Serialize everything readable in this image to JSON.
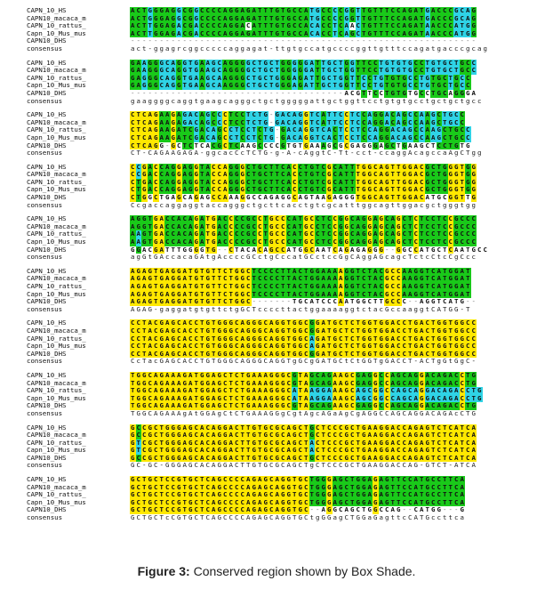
{
  "figure": {
    "caption_label": "Figure 3:",
    "caption_text": " Conserved region shown by Box Shade."
  },
  "legend_colors": {
    "identical": "#ffe800",
    "similar": "#19c919",
    "alternate": "#2fd3e6"
  },
  "blocks": [
    {
      "rows": [
        {
          "name": "CAPN_10_HS",
          "seq": "ACTGGGAGGCGGCCCCAGGAGATTTGTGCCATGCCCCGGTTGTTTCCAGATGACCCGCAG"
        },
        {
          "name": "CAPN10_macaca_m",
          "seq": "ACTGGGAGGCGGCCCCAGGAGATTTGTGCCATGCCCCGGTTGTTTCCAGATGACCCGCAG"
        },
        {
          "name": "CAPN_10_rattus_",
          "seq": "ACTTGGAGACGACCCCAGGACATTTGTGCCACACCTCAACTGTTTCCAGATAACCCATGG"
        },
        {
          "name": "Capn_10_Mus_mus",
          "seq": "ACTTGGAGACGACCCCAGGAGATTTGTGCCACACCTCAGCTGTTTCCAGATAACCCATGG"
        },
        {
          "name": "CAPN10_DHS",
          "seq": "------------------------------------------------------------"
        },
        {
          "name": "consensus",
          "seq": "act-ggagrcggcccccaggagat-ttgtgccatgccccggttgtttccagatgacccgcag"
        }
      ]
    },
    {
      "rows": [
        {
          "name": "CAPN_10_HS",
          "seq": "GAAGGGCAGGTGAAGCAGGGGCTGCTGGGGGATTGCTGGTTCCTGTGTGCCTGTGCTGCC"
        },
        {
          "name": "CAPN10_macaca_m",
          "seq": "GAAGGGCAGGTGAAGCAGGGGCTGCTGGGGGATTGCTGGTTCCTGTGTGCCTGTGCTGCC"
        },
        {
          "name": "CAPN_10_rattus_",
          "seq": "GAGGGCAGGTGAAGCAAGGGCTGCTGGGAGATTGCTGGTTCCTGTGTGCCTGTGCTGCC"
        },
        {
          "name": "Capn_10_Mus_mus",
          "seq": "GAGGGCAGGTGAAGCAAGGGCTGCTGGGAGATTGCTGGTTCCTGTGTGCCTGTGCTGCC"
        },
        {
          "name": "CAPN10_DHS",
          "seq": "-------------------------------------ACGTTCCTGTGTGCCTGCAGGGA"
        },
        {
          "name": "consensus",
          "seq": "gaaggggcaggtgaagcagggctgctgggggattgctggttcctgtgtgcctgctgctgcc"
        }
      ]
    },
    {
      "rows": [
        {
          "name": "CAPN_10_HS",
          "seq": "CTCAGAAGAGACAGCCCTCCTCTG-GACAGGTCATTCCTCCAGGACAGCCAAGCTGCC"
        },
        {
          "name": "CAPN10_macaca_m",
          "seq": "CTCAGAAGAGACAGCCCTCCTCTG-GACAGGTCATTCCTCCAGGACAGCCAAGCTGCC"
        },
        {
          "name": "CAPN_10_rattus_",
          "seq": "CTCAGAAGATCGACAGCCTCCTCTG-GACAGGTCACTCCTCCAGGACAGCCAAGCTGCC"
        },
        {
          "name": "Capn_10_Mus_mus",
          "seq": "CTCAGAAGATCGACAGCCTCCTCTG-GACAGGTCACTCCTCCAGGACAGCCAAGCTGCC"
        },
        {
          "name": "CAPN10_DHS",
          "seq": "CTCAGG-GCTCTCACGCTCAAGCCCCGTGTGAAAGCGCGAGGGAGCTGAAGCTCCTGTG"
        },
        {
          "name": "consensus",
          "seq": "CT-CAGAAGAGA-ggcacCcTCTG-g-A-cAggtC-Tt-cct-ccaggAcagccaAgCTgg"
        }
      ]
    },
    {
      "rows": [
        {
          "name": "CAPN_10_HS",
          "seq": "CCGACCAGGAGGTACCAGGGCTGCTTCACCTGTCGCATTTGGCAGTTGGACGCTGGGTGG"
        },
        {
          "name": "CAPN10_macaca_m",
          "seq": "CCGACCAGGAGGTACCAGGGCTGCTTCACCTGTCGCATTTGGCAGTTGGACGCTGGGTGG"
        },
        {
          "name": "CAPN_10_rattus_",
          "seq": "CTGACCAGGAGGTACCAGGGCTGCTTCACCTGTCGCATTTGGCAGTTGGACGCTGGGTGG"
        },
        {
          "name": "Capn_10_Mus_mus",
          "seq": "CTGACCAGGAGGTACCAGGGCTGCTTCACCTGTCGCATTTGGCAGTTGGACGCTGGGTGG"
        },
        {
          "name": "CAPN10_DHS",
          "seq": "CTGGCTGAGCAGAGCCAAAGGCCAGAGGCAGTAAGAGGGTGGCAGTTGGACATGCGGTTG"
        },
        {
          "name": "consensus",
          "seq": "Ccgaccaggaggtaccagggctgcttcacctgtcgcatttggcagttggacgctgggtgg"
        }
      ]
    },
    {
      "rows": [
        {
          "name": "CAPN_10_HS",
          "seq": "AGGTGACCACAGATGACCCCGCCTGCCCATGCCTCCGGCAGGAGCAGCTCTCCTCCGCCC"
        },
        {
          "name": "CAPN10_macaca_m",
          "seq": "AGGTGACCACAGATGACCCCGCCTGCCCATGCCTCCGGCAGGAGCAGCTCTCCTCCGCCC"
        },
        {
          "name": "CAPN_10_rattus_",
          "seq": "AAGTGACCACAGATGACCCCGCCTGCCCATGCCTCCGGCAGGAGCAGCTCTCCTCCGCCC"
        },
        {
          "name": "Capn_10_Mus_mus",
          "seq": "AAGTGACCACAGATGACCCCGCCTGCCCATGCCTCCGGCAGGAGCAGCTCTCCTCCGCCC"
        },
        {
          "name": "CAPN10_DHS",
          "seq": "GGACGATTTGGGGTG--CTACACAGCCATGGCAATCAGAGAGGG--GGCCATGCTCAATGCC"
        },
        {
          "name": "consensus",
          "seq": "agGtGAccacaGAtgAccccGCctgCccatGCctccGgCAggAGcagcTctcCtcCgCcc"
        }
      ]
    },
    {
      "rows": [
        {
          "name": "CAPN_10_HS",
          "seq": "AGAGTGAGGATGTGTTCTGGCTCCCCTTACTGGAAAAGGTCTACGCCAAGGTCATGGAT"
        },
        {
          "name": "CAPN10_macaca_m",
          "seq": "AGAGTGAGGATGTGTTCTGGCTCCCCTTACTGGAAAAGGTCTACGCCAAGGTCATGGAT"
        },
        {
          "name": "CAPN_10_rattus_",
          "seq": "AGAGTGAGGATGTGTTCTGGCTCCCCTTACTGGAAAAGGTCTACGCCAAGGTCATGGAT"
        },
        {
          "name": "Capn_10_Mus_mus",
          "seq": "AGAGTGAGGATGTGTTCTGGCTCCCCTTACTGGAAAAGGTCTACGCCAAGGTCATGGAT"
        },
        {
          "name": "CAPN10_DHS",
          "seq": "AGAGTGAGGATGTGTTCTGGC-------TGCATCCCAATGGCTTGCCC--AGGTCATG--"
        },
        {
          "name": "consensus",
          "seq": "AGAG-gaggatgtgttctgGCTccccttactggaaaaggtctacGccaaggtCATGG-T"
        }
      ]
    },
    {
      "rows": [
        {
          "name": "CAPN_10_HS",
          "seq": "CCTACGAGCACCTGTGGGCAGGGCAGGTGGCGGATGCTCTGGTGGACCTGACTGGTGGCC"
        },
        {
          "name": "CAPN10_macaca_m",
          "seq": "CCTACGAGCACCTGTGGGCAGGGCAGGTGGCGGATGCTCTGGTGGACCTGACTGGTGGCC"
        },
        {
          "name": "CAPN_10_rattus_",
          "seq": "CCTACGAGCACCTGTGGGCAGGGCAGGTGGCAGATGCTCTGGTGGACCTGACTGGTGGCC"
        },
        {
          "name": "Capn_10_Mus_mus",
          "seq": "CCTACGAGCACCTGTGGGCAGGGCAGGTGGCAGATGCTCTGGTGGACCTGACTGGTGGCC"
        },
        {
          "name": "CAPN10_DHS",
          "seq": "CCTACGAGCACCTGTGGGCAGGGCAGGTGGCGGATGCTCTGGTGGACCTGACTGGTGGCC"
        },
        {
          "name": "consensus",
          "seq": "CcTacGAGCACCTGTGGGCAGGGCAGGTgGCgGATGCtCtGGTgGACCT-ACTgGtGgC-"
        }
      ]
    },
    {
      "rows": [
        {
          "name": "CAPN_10_HS",
          "seq": "TGGCAGAAAGATGGAGCTCTGAAAGGGCGTAGCAGAAGCGAGGCCAGCAGGACAGACCTG"
        },
        {
          "name": "CAPN10_macaca_m",
          "seq": "TGGCAGAAAGATGGAGCTCTGAAAGGGCGTAGCAGAAGCGAGGCCAGCAGGACAGACCTG"
        },
        {
          "name": "CAPN_10_rattus_",
          "seq": "TGGCAGAAAGATGGAGCTCTGAAAGGGCATAAGGAAAGCAGCGGCCAGCAGGACAGACCTG"
        },
        {
          "name": "Capn_10_Mus_mus",
          "seq": "TGGCAGAAAGATGGAGCTCTGAAAGGGCATAAGGAAAGCAGCGGCCAGCAGGACAGACCTG"
        },
        {
          "name": "CAPN10_DHS",
          "seq": "TGGCAGAAAGATGGAGCTCTGAAAGGGCGTAGCAGAAGCGAGGCCAGCAGGACAGACCTG"
        },
        {
          "name": "consensus",
          "seq": "TGGCAGAAAgAtGGAgCtCTGAAAGGgCgtAgcAGaAgCgAGGCCAGCAGGACAGAcCTG"
        }
      ]
    },
    {
      "rows": [
        {
          "name": "CAPN_10_HS",
          "seq": "GCCGCTGGGAGCACAGGACTTGTGCGCAGCTGCTCCCGCTGAAGGACCAGAGTCTCATCA"
        },
        {
          "name": "CAPN10_macaca_m",
          "seq": "GCCGCTGGGAGCACAGGACTTGTGCGCAGCTGCTCCCGCTGAAGGACCAGAGTCTCATCA"
        },
        {
          "name": "CAPN_10_rattus_",
          "seq": "GTCGCTGGGAGCACAGGACTTGTGCGCAGCTACTCCCGCTGAAGGACCAGAGTCTCATCA"
        },
        {
          "name": "Capn_10_Mus_mus",
          "seq": "GTCGCTGGGAGCACAGGACTTGTGCGCAGCTACTCCCGCTGAAGGACCAGAGTCTCATCA"
        },
        {
          "name": "CAPN10_DHS",
          "seq": "GCCGCTGGGAGCACAGGACTTGTGCGCAGCTGCTCCCGCTGAAGGACCAGAGTCTCATCA"
        },
        {
          "name": "consensus",
          "seq": "GC-GC-GGGAGCACAGGACTTGTGCGCAGCTgCTCCCGCTGAAGGACCAG-GTCT-ATCA"
        }
      ]
    },
    {
      "rows": [
        {
          "name": "CAPN_10_HS",
          "seq": "GCTGCTCCGTGCTCAGCCCCAGAGCAGGTGCTGGGAGCTGGAGAGTTCCATGCCTTCA"
        },
        {
          "name": "CAPN10_macaca_m",
          "seq": "GCTGCTCCGTGCTCAGCCCCAGAGCAGGTGCTGGGAGCTGGAGAGTTCCATGCCTTCA"
        },
        {
          "name": "CAPN_10_rattus_",
          "seq": "GCTGCTCCGTGCTCAGCCCCAGAGCAGGTGCTGGGAGCTGGAGAGTTCCATGCCTTCA"
        },
        {
          "name": "Capn_10_Mus_mus",
          "seq": "GCTGCTCCGTGCTCAGCCCCAGAGCAGGTGCTGGGAGCTGGAGAGTTCCATGCCTTCA"
        },
        {
          "name": "CAPN10_DHS",
          "seq": "GCTGCTCCGTGCTCAGCCCCAGAGCAGGTGC--AGGCAGCTGGCCAG--CATGG---G"
        },
        {
          "name": "consensus",
          "seq": "GCTGCTcCGTGCTCAGCCCCAGAGCAGGTGCtgGGagCTGGaGagttcCATGccttca"
        }
      ]
    }
  ]
}
